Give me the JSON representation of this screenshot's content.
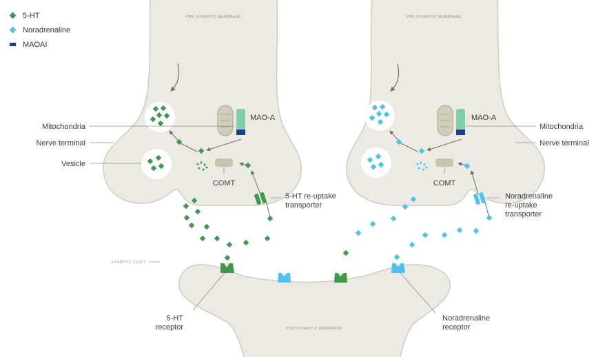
{
  "legend": [
    {
      "label": "5-HT",
      "color": "#3e9a4a",
      "shape": "diamond"
    },
    {
      "label": "Noradrenaline",
      "color": "#4cc3ef",
      "shape": "diamond"
    },
    {
      "label": "MAOAI",
      "color": "#263a8c",
      "shape": "bar"
    }
  ],
  "colors": {
    "membrane_fill": "#ebeae3",
    "membrane_edge": "#cfcdc3",
    "vesicle": "#ffffff",
    "mitochondria": "#d2cdb9",
    "comt": "#c8c3ae",
    "mao": "#7fcfa8",
    "line": "#8f8e88"
  },
  "left_terminal": {
    "membrane": "PRE-SYNAPTIC MEMBRANE",
    "mao": "MAO-A",
    "comt": "COMT",
    "labels": {
      "mitochondria": "Mitochondria",
      "nerve_terminal": "Nerve terminal",
      "vesicle": "Vesicle",
      "transporter": "5-HT re-uptake transporter"
    }
  },
  "right_terminal": {
    "membrane": "PRE-SYNAPTIC MEMBRANE",
    "mao": "MAO-A",
    "comt": "COMT",
    "labels": {
      "mitochondria": "Mitochondria",
      "nerve_terminal": "Nerve terminal",
      "transporter": "Noradrenaline re-uptake transporter"
    }
  },
  "synaptic_cleft": "SYNAPTIC CLEFT",
  "postsynaptic": {
    "membrane": "POSTSYNAPTIC MEMBRANE",
    "receptor_5ht": "5-HT receptor",
    "receptor_na": "Noradrenaline receptor"
  }
}
